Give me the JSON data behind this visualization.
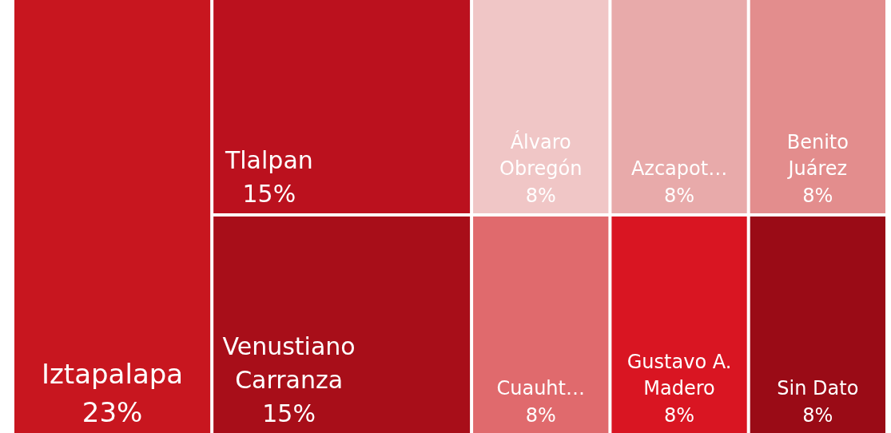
{
  "chart_data": {
    "type": "other",
    "categories": [
      "Iztapalapa",
      "Tlalpan",
      "Venustiano Carranza",
      "Álvaro Obregón",
      "Azcapot…",
      "Benito Juárez",
      "Cuauht…",
      "Gustavo A. Madero",
      "Sin Dato"
    ],
    "values": [
      23,
      15,
      15,
      8,
      8,
      8,
      8,
      8,
      8
    ],
    "value_labels": [
      "23%",
      "15%",
      "15%",
      "8%",
      "8%",
      "8%",
      "8%",
      "8%",
      "8%"
    ],
    "colors": [
      "#c8161f",
      "#bb111e",
      "#a80e19",
      "#f0c6c6",
      "#e8aaaa",
      "#e38d8d",
      "#e06a6d",
      "#d91522",
      "#9a0b16"
    ]
  }
}
